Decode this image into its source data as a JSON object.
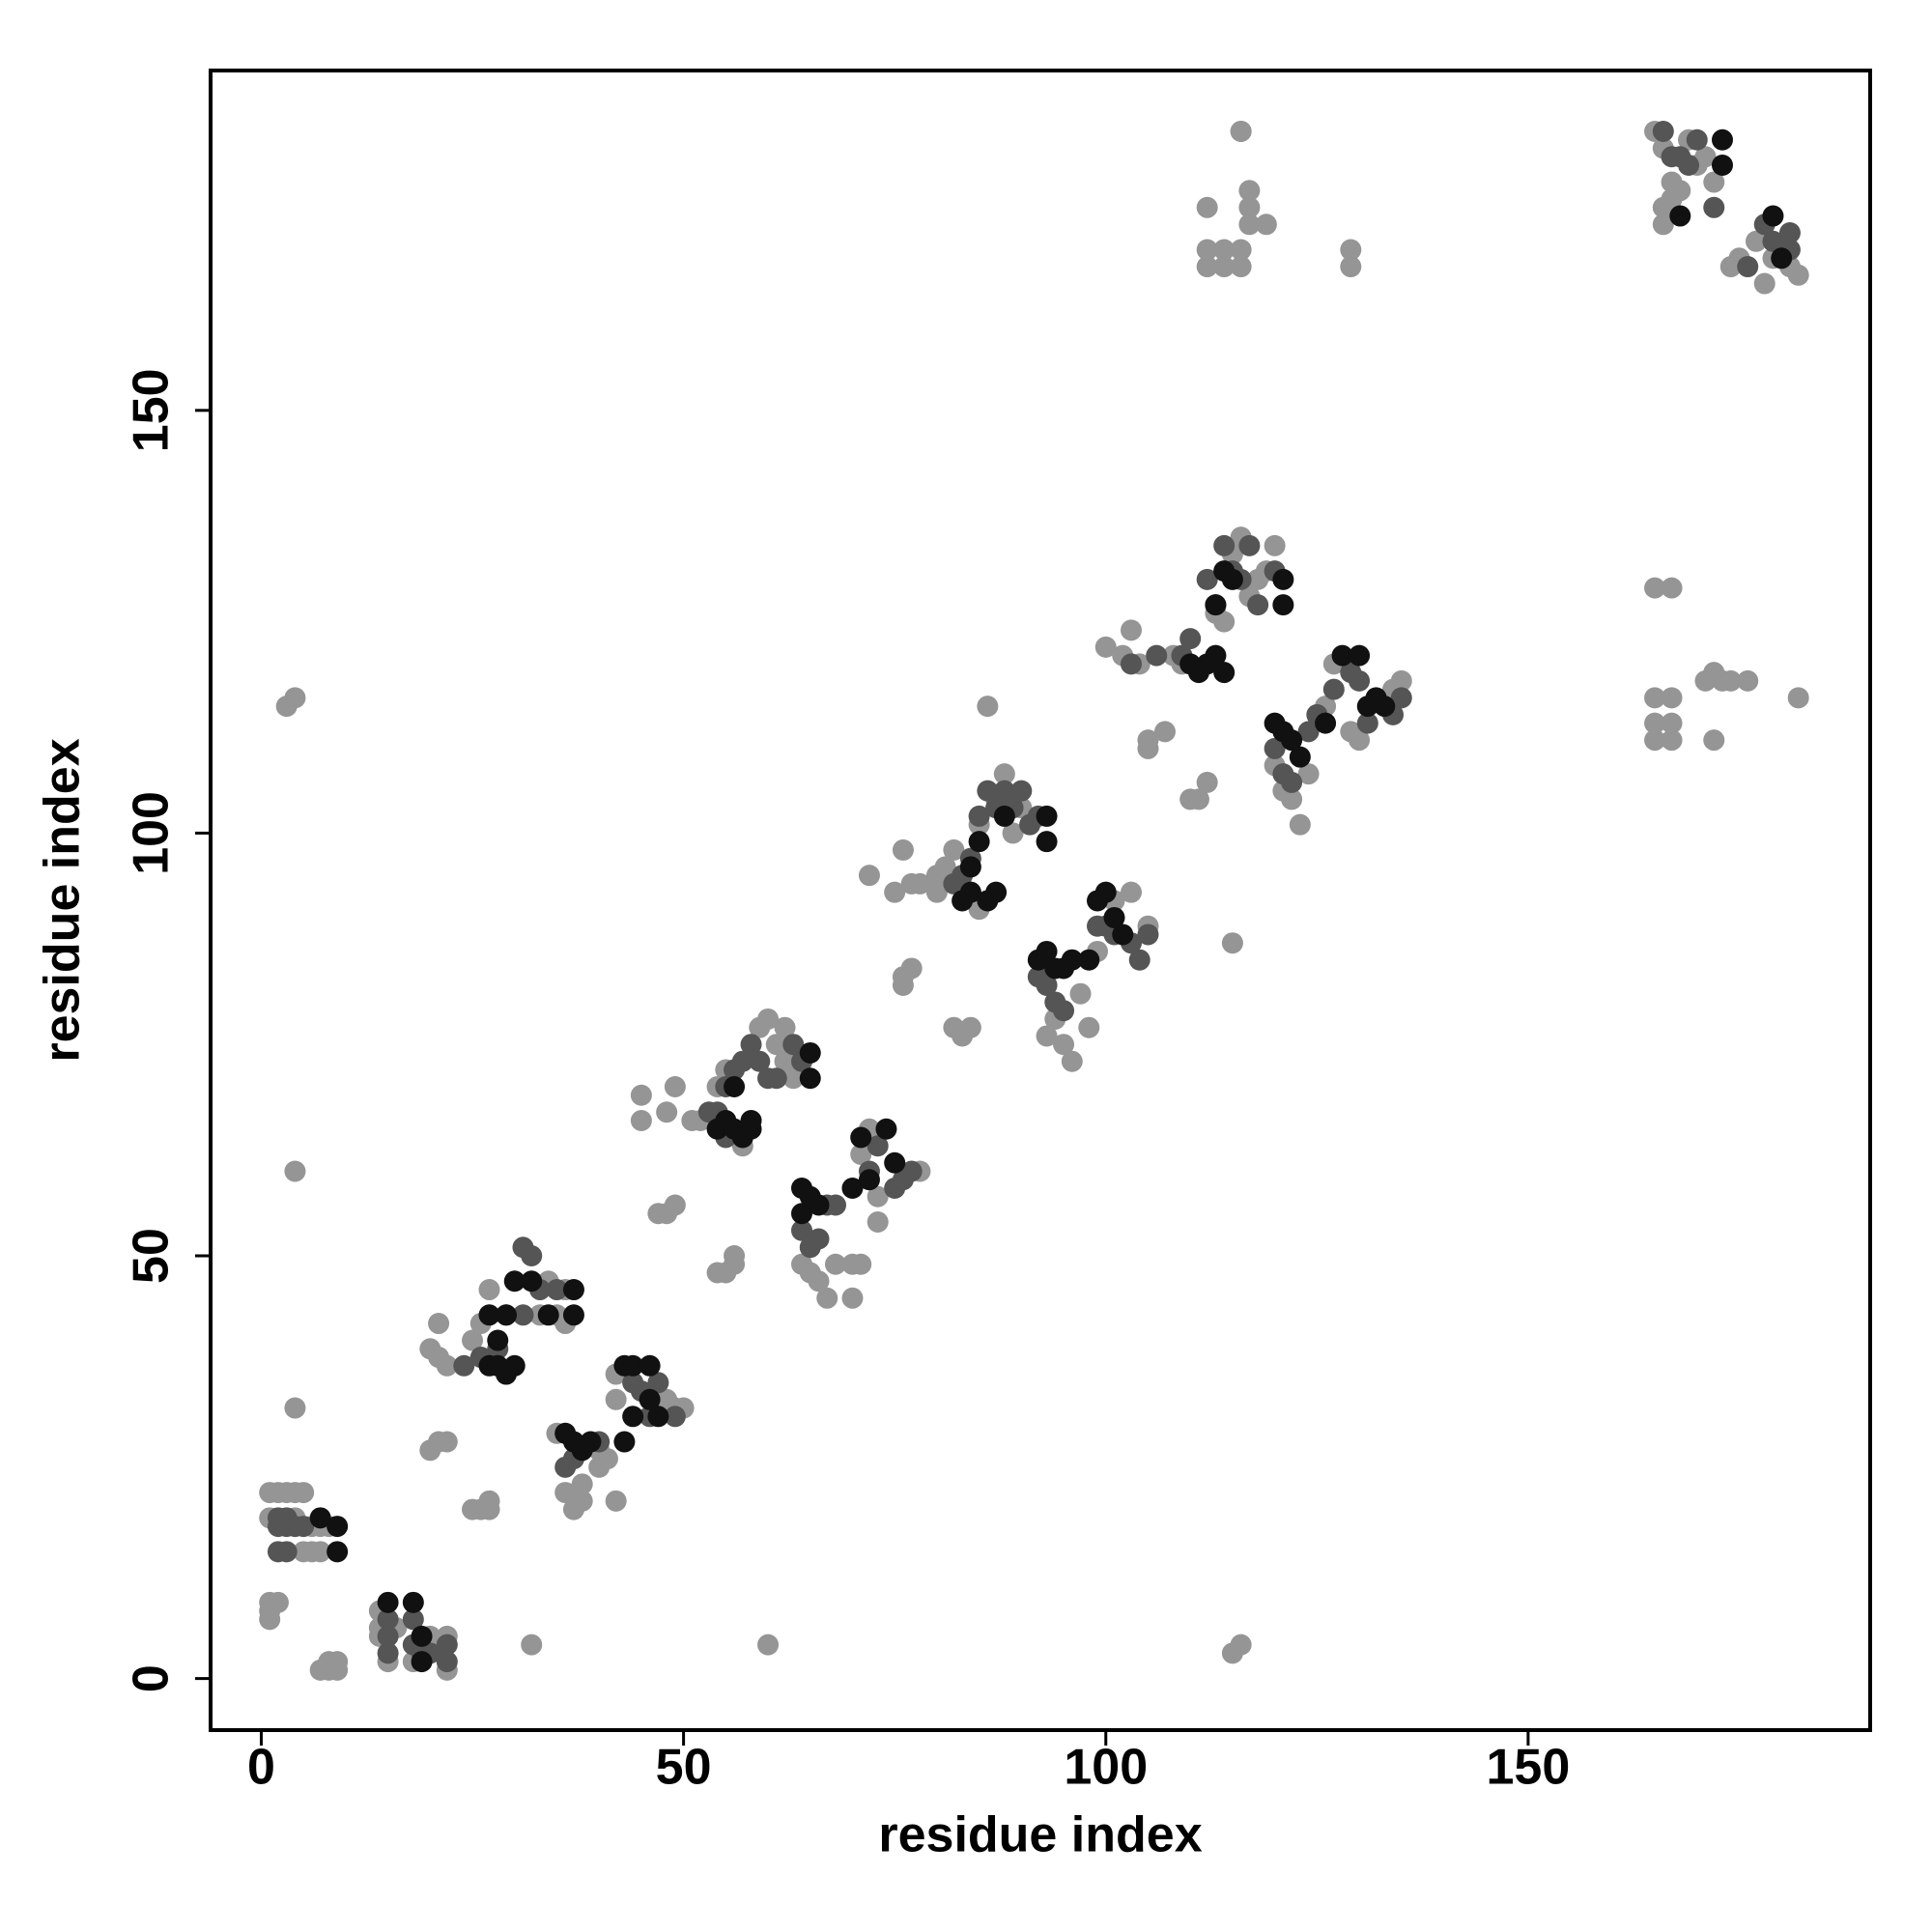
{
  "chart_data": {
    "type": "scatter",
    "x_label": "residue index",
    "y_label": "residue index",
    "xlim": [
      -6,
      190.5
    ],
    "ylim": [
      -6.1,
      190.2
    ],
    "xticks": [
      0,
      50,
      100,
      150
    ],
    "yticks": [
      0,
      50,
      100,
      150
    ],
    "series": [
      {
        "color": "#959595",
        "x": [
          1,
          2,
          3,
          4,
          5,
          1,
          4,
          6,
          7,
          8,
          5,
          6,
          7,
          1,
          2,
          1,
          1,
          7,
          8,
          9,
          8,
          9,
          14,
          14,
          14,
          15,
          18,
          20,
          22,
          22,
          16,
          3,
          4,
          4,
          4,
          32,
          60,
          115,
          116,
          115,
          116,
          20,
          21,
          22,
          21,
          25,
          26,
          27,
          20,
          21,
          22,
          25,
          26,
          27,
          27,
          33,
          35,
          36,
          34,
          36,
          35,
          36,
          37,
          38,
          38,
          40,
          41,
          42,
          42,
          42,
          48,
          49,
          50,
          40,
          45,
          45,
          47,
          48,
          49,
          48,
          49,
          51,
          52,
          54,
          55,
          56,
          56,
          54,
          55,
          57,
          59,
          60,
          61,
          62,
          62,
          63,
          64,
          65,
          66,
          67,
          68,
          70,
          70,
          71,
          73,
          73,
          78,
          71,
          72,
          72,
          75,
          76,
          77,
          78,
          80,
          80,
          81,
          82,
          84,
          85,
          85,
          87,
          88,
          89,
          90,
          76,
          76,
          77,
          82,
          83,
          84,
          86,
          93,
          94,
          95,
          96,
          97,
          98,
          99,
          101,
          103,
          105,
          100,
          102,
          103,
          104,
          105,
          105,
          107,
          108,
          109,
          110,
          111,
          112,
          113,
          114,
          115,
          116,
          117,
          118,
          119,
          120,
          120,
          121,
          122,
          123,
          124,
          126,
          127,
          129,
          130,
          134,
          135,
          165,
          166,
          167,
          168,
          169,
          170,
          171,
          172,
          166,
          166,
          167,
          174,
          175,
          177,
          178,
          179,
          181,
          182,
          112,
          112,
          112,
          114,
          114,
          116,
          116,
          117,
          117,
          117,
          119,
          129,
          129,
          116,
          165,
          167,
          165,
          167,
          165,
          167,
          165,
          167,
          171,
          172,
          173,
          174,
          176,
          172,
          182
        ],
        "values": [
          22,
          22,
          22,
          22,
          22,
          19,
          19,
          18,
          18,
          18,
          15,
          15,
          15,
          9,
          9,
          8,
          7,
          1,
          1,
          1,
          2,
          2,
          8,
          6,
          5,
          2,
          2,
          5,
          5,
          1,
          6,
          115,
          116,
          60,
          32,
          4,
          4,
          3,
          4,
          87,
          183,
          39,
          38,
          37,
          42,
          40,
          42,
          46,
          27,
          28,
          28,
          20,
          20,
          21,
          20,
          43,
          43,
          46,
          47,
          42,
          29,
          22,
          20,
          23,
          21,
          27,
          26,
          21,
          33,
          36,
          33,
          32,
          32,
          25,
          69,
          66,
          55,
          55,
          56,
          67,
          70,
          66,
          66,
          48,
          48,
          49,
          50,
          70,
          72,
          63,
          77,
          78,
          75,
          77,
          73,
          71,
          49,
          48,
          47,
          45,
          49,
          45,
          49,
          49,
          54,
          57,
          60,
          62,
          65,
          95,
          93,
          98,
          94,
          94,
          93,
          95,
          96,
          98,
          93,
          91,
          101,
          104,
          107,
          100,
          103,
          83,
          82,
          84,
          77,
          76,
          77,
          115,
          76,
          78,
          75,
          73,
          81,
          77,
          86,
          92,
          93,
          89,
          122,
          121,
          124,
          120,
          111,
          110,
          112,
          121,
          120,
          104,
          104,
          106,
          126,
          125,
          133,
          135,
          128,
          130,
          131,
          134,
          108,
          105,
          104,
          101,
          107,
          115,
          120,
          112,
          111,
          117,
          118,
          183,
          181,
          177,
          176,
          182,
          179,
          180,
          177,
          172,
          174,
          175,
          167,
          168,
          170,
          165,
          168,
          167,
          166,
          174,
          167,
          169,
          167,
          169,
          169,
          167,
          176,
          174,
          172,
          172,
          167,
          169,
          183,
          129,
          129,
          116,
          116,
          113,
          113,
          111,
          111,
          118,
          119,
          118,
          118,
          118,
          111,
          116
        ]
      },
      {
        "color": "#555555",
        "x": [
          2,
          3,
          4,
          5,
          2,
          3,
          2,
          3,
          15,
          15,
          15,
          18,
          18,
          19,
          20,
          22,
          22,
          31,
          32,
          33,
          35,
          29,
          31,
          24,
          26,
          28,
          36,
          37,
          40,
          44,
          45,
          46,
          47,
          49,
          53,
          54,
          55,
          55,
          56,
          57,
          58,
          59,
          60,
          61,
          63,
          64,
          64,
          65,
          66,
          67,
          68,
          72,
          73,
          75,
          76,
          77,
          82,
          83,
          84,
          85,
          86,
          87,
          88,
          89,
          90,
          91,
          92,
          92,
          93,
          94,
          95,
          99,
          100,
          101,
          103,
          104,
          105,
          103,
          106,
          109,
          110,
          112,
          113,
          114,
          115,
          116,
          117,
          118,
          120,
          120,
          121,
          122,
          124,
          125,
          127,
          129,
          130,
          131,
          134,
          135,
          166,
          167,
          168,
          169,
          170,
          172,
          176,
          178,
          179,
          181,
          181
        ],
        "values": [
          19,
          19,
          18,
          18,
          15,
          15,
          18,
          18,
          5,
          3,
          7,
          7,
          4,
          3,
          3,
          4,
          2,
          51,
          50,
          46,
          46,
          43,
          43,
          37,
          38,
          39,
          25,
          26,
          28,
          35,
          34,
          31,
          35,
          31,
          67,
          67,
          64,
          70,
          72,
          73,
          75,
          73,
          71,
          71,
          75,
          73,
          53,
          51,
          52,
          56,
          56,
          60,
          63,
          58,
          59,
          60,
          94,
          95,
          97,
          102,
          105,
          103,
          105,
          103,
          105,
          101,
          102,
          83,
          82,
          80,
          79,
          89,
          89,
          88,
          87,
          85,
          88,
          120,
          121,
          121,
          123,
          130,
          127,
          134,
          131,
          130,
          134,
          127,
          131,
          110,
          107,
          106,
          112,
          114,
          117,
          119,
          118,
          113,
          114,
          116,
          183,
          180,
          180,
          179,
          182,
          174,
          167,
          172,
          170,
          171,
          169
        ]
      },
      {
        "color": "#111111",
        "x": [
          9,
          9,
          7,
          15,
          18,
          19,
          19,
          27,
          28,
          29,
          30,
          28,
          27,
          29,
          30,
          32,
          34,
          37,
          37,
          36,
          37,
          38,
          39,
          43,
          44,
          44,
          46,
          47,
          43,
          46,
          54,
          55,
          56,
          57,
          58,
          56,
          65,
          65,
          58,
          64,
          65,
          64,
          66,
          70,
          71,
          72,
          74,
          75,
          83,
          84,
          85,
          86,
          87,
          88,
          93,
          93,
          84,
          92,
          93,
          94,
          95,
          96,
          98,
          99,
          100,
          101,
          102,
          110,
          111,
          112,
          113,
          113,
          114,
          115,
          121,
          121,
          114,
          120,
          121,
          122,
          123,
          126,
          128,
          130,
          131,
          132,
          133,
          173,
          173,
          179,
          180,
          168
        ],
        "values": [
          18,
          15,
          19,
          9,
          9,
          5,
          2,
          37,
          37,
          36,
          37,
          40,
          43,
          43,
          47,
          47,
          43,
          43,
          46,
          29,
          28,
          27,
          28,
          37,
          31,
          37,
          37,
          31,
          28,
          33,
          65,
          66,
          65,
          64,
          65,
          70,
          71,
          74,
          66,
          58,
          57,
          55,
          56,
          58,
          64,
          59,
          65,
          61,
          92,
          93,
          99,
          92,
          93,
          102,
          99,
          102,
          96,
          85,
          86,
          84,
          84,
          85,
          85,
          92,
          93,
          90,
          88,
          120,
          119,
          120,
          121,
          127,
          131,
          130,
          130,
          127,
          119,
          113,
          112,
          111,
          109,
          113,
          121,
          121,
          115,
          116,
          115,
          182,
          179,
          173,
          168,
          173
        ]
      }
    ]
  }
}
